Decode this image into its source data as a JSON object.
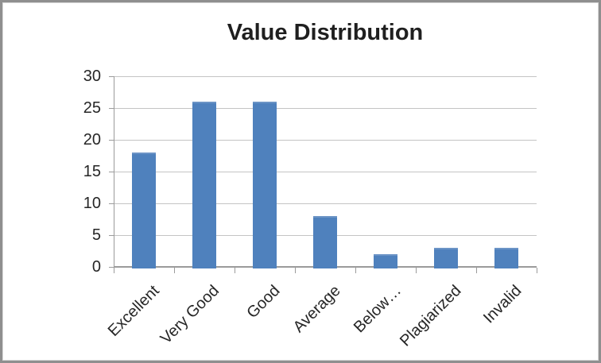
{
  "chart_data": {
    "type": "bar",
    "title": "Value Distribution",
    "categories": [
      "Excellent",
      "Very Good",
      "Good",
      "Average",
      "Below…",
      "Plagiarized",
      "Invalid"
    ],
    "values": [
      18,
      26,
      26,
      8,
      2,
      3,
      3
    ],
    "xlabel": "",
    "ylabel": "",
    "ylim": [
      0,
      30
    ],
    "yticks": [
      0,
      5,
      10,
      15,
      20,
      25,
      30
    ],
    "grid": true,
    "legend": "none",
    "x_label_rotation_deg": 45,
    "colors": {
      "bar_fill": "#4F81BD",
      "bar_edge": "#6C94C6",
      "gridline": "#C4C4C4",
      "axis": "#9B9B9B",
      "tick": "#9B9B9B",
      "label_text": "#262626",
      "title_text": "#1F1F1F",
      "frame_border": "#8F8F8F",
      "background": "#FFFFFF"
    }
  }
}
